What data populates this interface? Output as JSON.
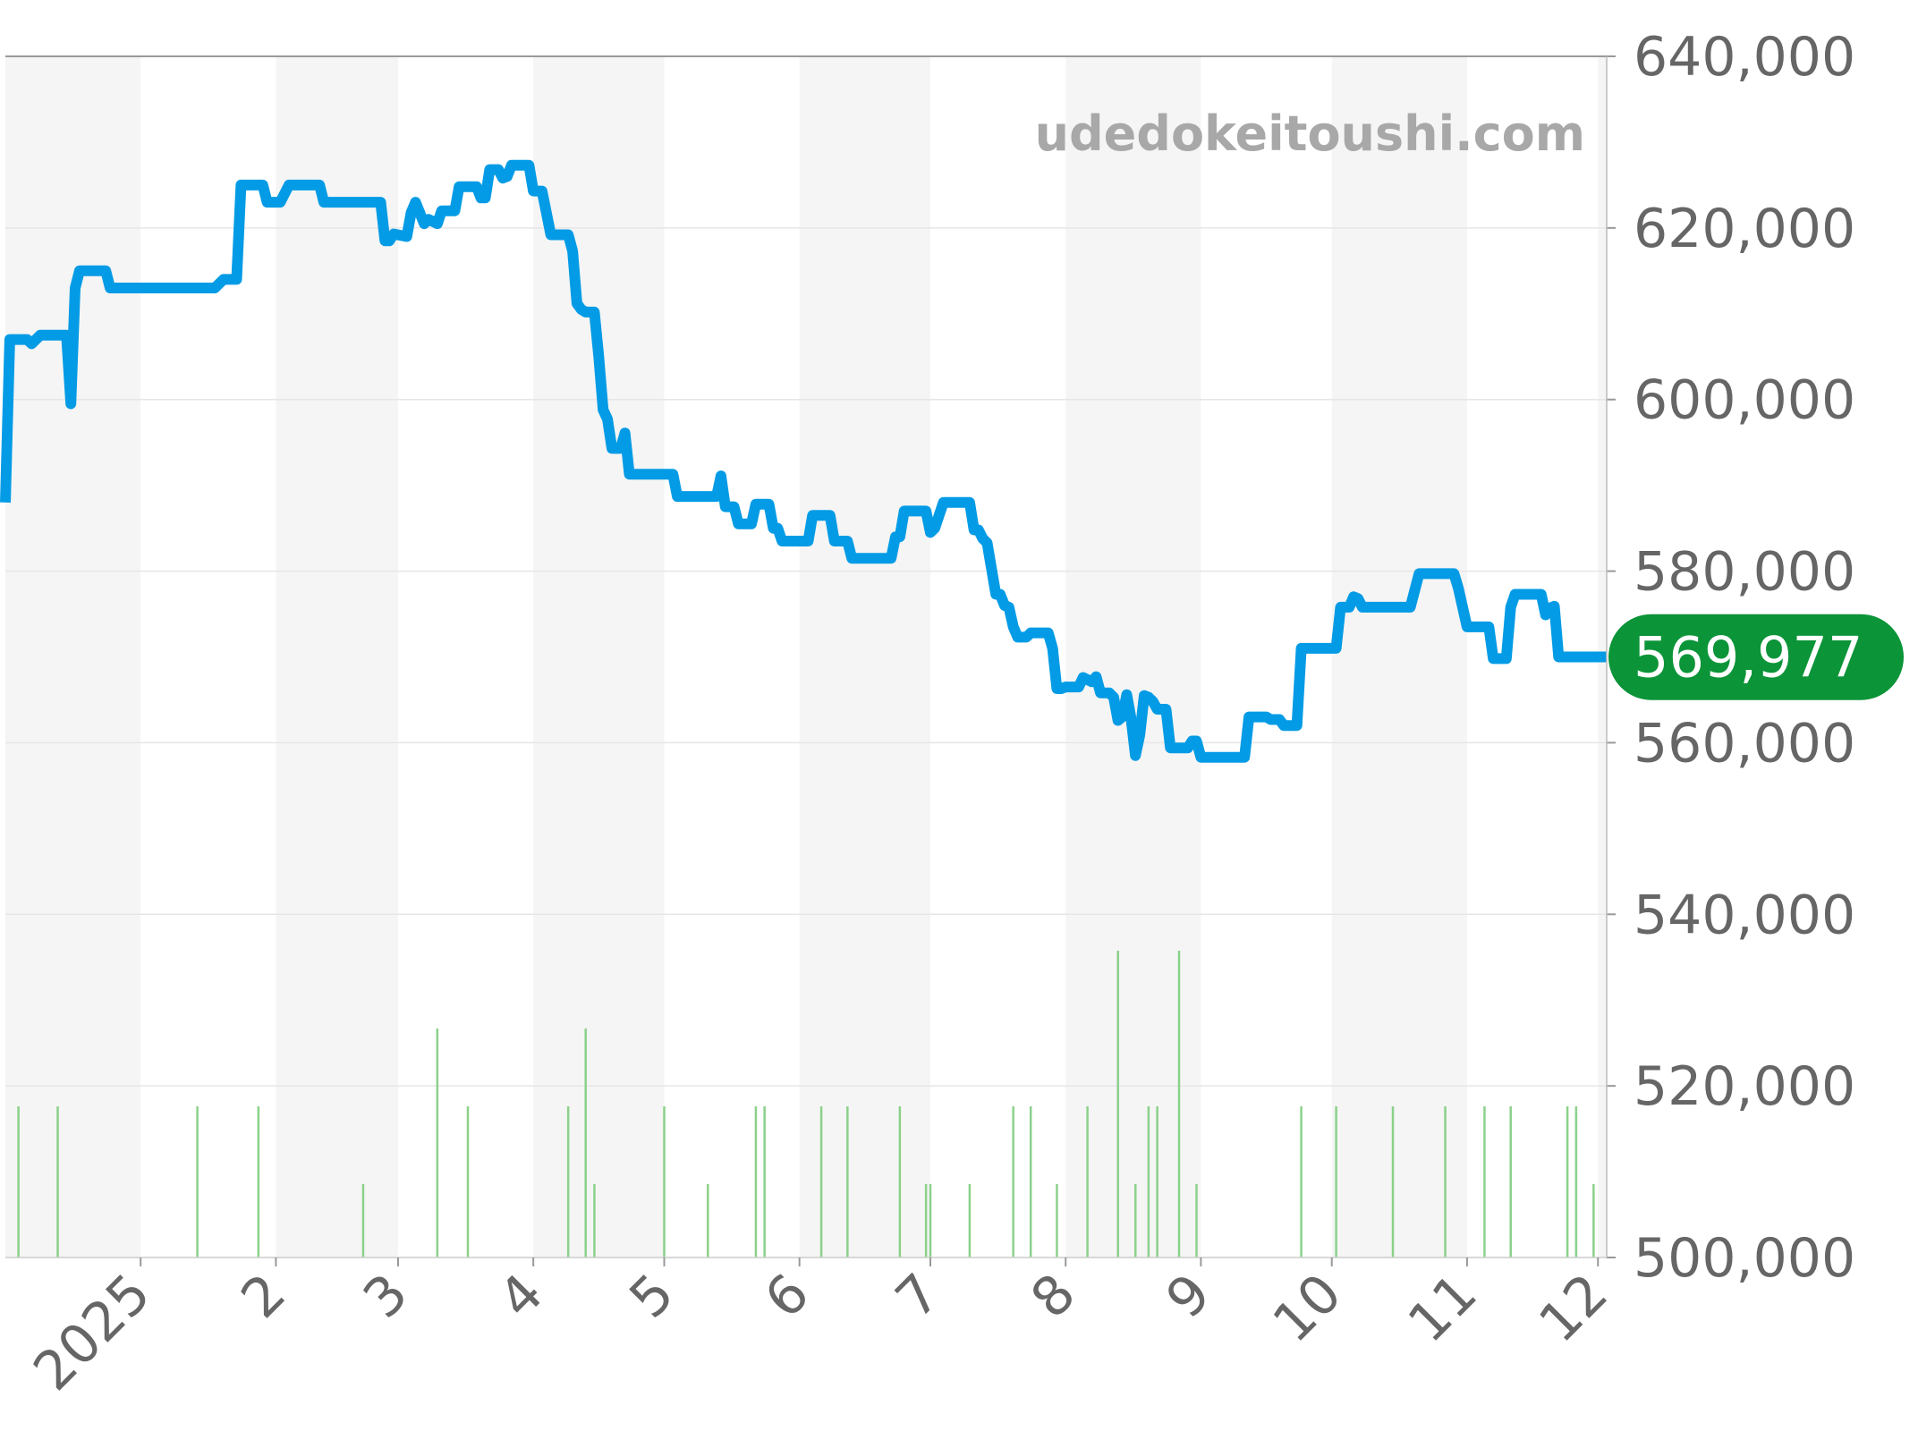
{
  "watermark": "udedokeitoushi.com",
  "colors": {
    "price_line": "#039be5",
    "volume_bars": "#8bd18b",
    "current_badge": "#0b9438",
    "band": "#f5f5f5",
    "grid": "#e6e6e6",
    "axis_text": "#666666"
  },
  "chart_data": {
    "type": "line",
    "title": "",
    "xlabel": "",
    "ylabel": "",
    "ylim": [
      500000,
      640000
    ],
    "yticks": [
      "500,000",
      "520,000",
      "540,000",
      "560,000",
      "580,000",
      "600,000",
      "620,000",
      "640,000"
    ],
    "x_range": [
      "2024-12-01",
      "2025-12-03"
    ],
    "xticks": [
      {
        "label": "2025",
        "date": "2025-01-01"
      },
      {
        "label": "2",
        "date": "2025-02-01"
      },
      {
        "label": "3",
        "date": "2025-03-01"
      },
      {
        "label": "4",
        "date": "2025-04-01"
      },
      {
        "label": "5",
        "date": "2025-05-01"
      },
      {
        "label": "6",
        "date": "2025-06-01"
      },
      {
        "label": "7",
        "date": "2025-07-01"
      },
      {
        "label": "8",
        "date": "2025-08-01"
      },
      {
        "label": "9",
        "date": "2025-09-01"
      },
      {
        "label": "10",
        "date": "2025-10-01"
      },
      {
        "label": "11",
        "date": "2025-11-01"
      },
      {
        "label": "12",
        "date": "2025-12-01"
      }
    ],
    "grid": true,
    "legend": "none",
    "current_value": 569977,
    "current_label": "569,977",
    "price_series": [
      [
        "2024-12-01",
        588000
      ],
      [
        "2024-12-02",
        607000
      ],
      [
        "2024-12-06",
        607000
      ],
      [
        "2024-12-07",
        606500
      ],
      [
        "2024-12-09",
        607500
      ],
      [
        "2024-12-15",
        607500
      ],
      [
        "2024-12-16",
        599500
      ],
      [
        "2024-12-17",
        613000
      ],
      [
        "2024-12-18",
        615000
      ],
      [
        "2024-12-24",
        615000
      ],
      [
        "2024-12-25",
        613000
      ],
      [
        "2025-01-18",
        613000
      ],
      [
        "2025-01-20",
        614000
      ],
      [
        "2025-01-23",
        614000
      ],
      [
        "2025-01-24",
        625000
      ],
      [
        "2025-01-29",
        625000
      ],
      [
        "2025-01-30",
        623000
      ],
      [
        "2025-02-02",
        623000
      ],
      [
        "2025-02-04",
        625000
      ],
      [
        "2025-02-11",
        625000
      ],
      [
        "2025-02-12",
        623000
      ],
      [
        "2025-02-25",
        623000
      ],
      [
        "2025-02-26",
        618500
      ],
      [
        "2025-02-27",
        618500
      ],
      [
        "2025-02-28",
        619300
      ],
      [
        "2025-03-03",
        619000
      ],
      [
        "2025-03-04",
        621800
      ],
      [
        "2025-03-05",
        623000
      ],
      [
        "2025-03-07",
        620500
      ],
      [
        "2025-03-08",
        621000
      ],
      [
        "2025-03-10",
        620500
      ],
      [
        "2025-03-11",
        622000
      ],
      [
        "2025-03-14",
        622000
      ],
      [
        "2025-03-15",
        624800
      ],
      [
        "2025-03-19",
        624800
      ],
      [
        "2025-03-20",
        623500
      ],
      [
        "2025-03-21",
        623500
      ],
      [
        "2025-03-22",
        626800
      ],
      [
        "2025-03-24",
        626800
      ],
      [
        "2025-03-25",
        625800
      ],
      [
        "2025-03-26",
        626000
      ],
      [
        "2025-03-27",
        627300
      ],
      [
        "2025-03-31",
        627300
      ],
      [
        "2025-04-01",
        624300
      ],
      [
        "2025-04-03",
        624300
      ],
      [
        "2025-04-05",
        619200
      ],
      [
        "2025-04-09",
        619200
      ],
      [
        "2025-04-10",
        617300
      ],
      [
        "2025-04-11",
        611200
      ],
      [
        "2025-04-12",
        610500
      ],
      [
        "2025-04-13",
        610200
      ],
      [
        "2025-04-15",
        610200
      ],
      [
        "2025-04-16",
        605000
      ],
      [
        "2025-04-17",
        598800
      ],
      [
        "2025-04-18",
        597700
      ],
      [
        "2025-04-19",
        594300
      ],
      [
        "2025-04-21",
        594300
      ],
      [
        "2025-04-22",
        596100
      ],
      [
        "2025-04-23",
        591300
      ],
      [
        "2025-05-03",
        591300
      ],
      [
        "2025-05-04",
        588700
      ],
      [
        "2025-05-13",
        588700
      ],
      [
        "2025-05-14",
        591100
      ],
      [
        "2025-05-15",
        587500
      ],
      [
        "2025-05-17",
        587500
      ],
      [
        "2025-05-18",
        585500
      ],
      [
        "2025-05-21",
        585500
      ],
      [
        "2025-05-22",
        587800
      ],
      [
        "2025-05-25",
        587800
      ],
      [
        "2025-05-26",
        585000
      ],
      [
        "2025-05-27",
        585000
      ],
      [
        "2025-05-28",
        583500
      ],
      [
        "2025-06-03",
        583500
      ],
      [
        "2025-06-04",
        586500
      ],
      [
        "2025-06-08",
        586500
      ],
      [
        "2025-06-09",
        583500
      ],
      [
        "2025-06-12",
        583500
      ],
      [
        "2025-06-13",
        581500
      ],
      [
        "2025-06-22",
        581500
      ],
      [
        "2025-06-23",
        584000
      ],
      [
        "2025-06-24",
        584000
      ],
      [
        "2025-06-25",
        587000
      ],
      [
        "2025-06-30",
        587000
      ],
      [
        "2025-07-01",
        584500
      ],
      [
        "2025-07-02",
        585000
      ],
      [
        "2025-07-04",
        588000
      ],
      [
        "2025-07-10",
        588000
      ],
      [
        "2025-07-11",
        584800
      ],
      [
        "2025-07-12",
        584800
      ],
      [
        "2025-07-13",
        583800
      ],
      [
        "2025-07-14",
        583300
      ],
      [
        "2025-07-16",
        577300
      ],
      [
        "2025-07-17",
        577300
      ],
      [
        "2025-07-18",
        576000
      ],
      [
        "2025-07-19",
        575800
      ],
      [
        "2025-07-20",
        573500
      ],
      [
        "2025-07-21",
        572300
      ],
      [
        "2025-07-23",
        572300
      ],
      [
        "2025-07-24",
        572800
      ],
      [
        "2025-07-28",
        572800
      ],
      [
        "2025-07-29",
        571000
      ],
      [
        "2025-07-30",
        566300
      ],
      [
        "2025-07-31",
        566300
      ],
      [
        "2025-08-01",
        566500
      ],
      [
        "2025-08-04",
        566500
      ],
      [
        "2025-08-05",
        567600
      ],
      [
        "2025-08-07",
        567100
      ],
      [
        "2025-08-08",
        567700
      ],
      [
        "2025-08-09",
        565800
      ],
      [
        "2025-08-11",
        565800
      ],
      [
        "2025-08-12",
        565300
      ],
      [
        "2025-08-13",
        562600
      ],
      [
        "2025-08-14",
        563000
      ],
      [
        "2025-08-15",
        565600
      ],
      [
        "2025-08-16",
        562800
      ],
      [
        "2025-08-17",
        558500
      ],
      [
        "2025-08-18",
        560900
      ],
      [
        "2025-08-19",
        565500
      ],
      [
        "2025-08-20",
        565300
      ],
      [
        "2025-08-21",
        564800
      ],
      [
        "2025-08-22",
        563900
      ],
      [
        "2025-08-24",
        563900
      ],
      [
        "2025-08-25",
        559400
      ],
      [
        "2025-08-29",
        559400
      ],
      [
        "2025-08-30",
        560200
      ],
      [
        "2025-08-31",
        560200
      ],
      [
        "2025-09-01",
        558300
      ],
      [
        "2025-09-11",
        558300
      ],
      [
        "2025-09-12",
        563000
      ],
      [
        "2025-09-16",
        563000
      ],
      [
        "2025-09-17",
        562700
      ],
      [
        "2025-09-19",
        562700
      ],
      [
        "2025-09-20",
        562000
      ],
      [
        "2025-09-23",
        562000
      ],
      [
        "2025-09-24",
        571000
      ],
      [
        "2025-10-02",
        571000
      ],
      [
        "2025-10-03",
        575800
      ],
      [
        "2025-10-05",
        575800
      ],
      [
        "2025-10-06",
        577000
      ],
      [
        "2025-10-07",
        576800
      ],
      [
        "2025-10-08",
        575800
      ],
      [
        "2025-10-19",
        575800
      ],
      [
        "2025-10-21",
        579700
      ],
      [
        "2025-10-29",
        579700
      ],
      [
        "2025-10-30",
        578000
      ],
      [
        "2025-11-01",
        573500
      ],
      [
        "2025-11-06",
        573500
      ],
      [
        "2025-11-07",
        569800
      ],
      [
        "2025-11-10",
        569800
      ],
      [
        "2025-11-11",
        575800
      ],
      [
        "2025-11-12",
        577300
      ],
      [
        "2025-11-18",
        577300
      ],
      [
        "2025-11-19",
        574900
      ],
      [
        "2025-11-20",
        575700
      ],
      [
        "2025-11-21",
        575900
      ],
      [
        "2025-11-22",
        570000
      ],
      [
        "2025-12-03",
        570000
      ]
    ],
    "volume_series": [
      [
        "2024-12-04",
        2
      ],
      [
        "2024-12-13",
        2
      ],
      [
        "2025-01-14",
        2
      ],
      [
        "2025-01-28",
        2
      ],
      [
        "2025-02-21",
        1
      ],
      [
        "2025-03-10",
        3
      ],
      [
        "2025-03-17",
        2
      ],
      [
        "2025-04-09",
        2
      ],
      [
        "2025-04-13",
        3
      ],
      [
        "2025-04-15",
        1
      ],
      [
        "2025-05-01",
        2
      ],
      [
        "2025-05-11",
        1
      ],
      [
        "2025-05-22",
        2
      ],
      [
        "2025-05-24",
        2
      ],
      [
        "2025-06-06",
        2
      ],
      [
        "2025-06-12",
        2
      ],
      [
        "2025-06-24",
        2
      ],
      [
        "2025-06-30",
        1
      ],
      [
        "2025-07-01",
        1
      ],
      [
        "2025-07-10",
        1
      ],
      [
        "2025-07-20",
        2
      ],
      [
        "2025-07-24",
        2
      ],
      [
        "2025-07-30",
        1
      ],
      [
        "2025-08-06",
        2
      ],
      [
        "2025-08-13",
        4
      ],
      [
        "2025-08-17",
        1
      ],
      [
        "2025-08-20",
        2
      ],
      [
        "2025-08-22",
        2
      ],
      [
        "2025-08-27",
        4
      ],
      [
        "2025-08-31",
        1
      ],
      [
        "2025-09-24",
        2
      ],
      [
        "2025-10-02",
        2
      ],
      [
        "2025-10-15",
        2
      ],
      [
        "2025-10-27",
        2
      ],
      [
        "2025-11-05",
        2
      ],
      [
        "2025-11-11",
        2
      ],
      [
        "2025-11-24",
        2
      ],
      [
        "2025-11-26",
        2
      ],
      [
        "2025-11-30",
        1
      ]
    ]
  }
}
